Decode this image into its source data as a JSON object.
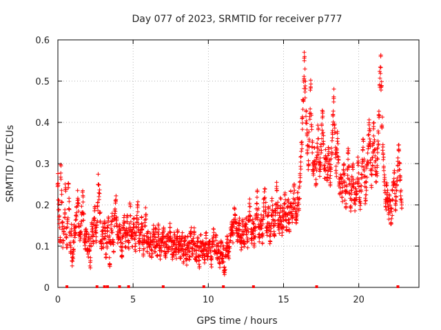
{
  "chart_data": {
    "type": "scatter",
    "title": "Day 077 of 2023, SRMTID for receiver p777",
    "xlabel": "GPS time / hours",
    "ylabel": "SRMTID / TECUs",
    "xlim": [
      0,
      24
    ],
    "ylim": [
      0,
      0.6
    ],
    "grid": true,
    "grid_style": "dotted",
    "marker": "+",
    "color": "#ff0000",
    "x_ticks": [
      0,
      5,
      10,
      15,
      20
    ],
    "x_tick_labels": [
      "0",
      "5",
      "10",
      "15",
      "20"
    ],
    "y_ticks": [
      0,
      0.1,
      0.2,
      0.3,
      0.4,
      0.5,
      0.6
    ],
    "y_tick_labels": [
      "0",
      "0.1",
      "0.2",
      "0.3",
      "0.4",
      "0.5",
      "0.6"
    ],
    "series": [
      {
        "name": "SRMTID",
        "points_per_cluster": 5,
        "cluster_spread": 0.012,
        "x_step": 0.05,
        "x": [
          0.0,
          0.05,
          0.1,
          0.15,
          0.2,
          0.25,
          0.3,
          0.35,
          0.4,
          0.45,
          0.5,
          0.55,
          0.6,
          0.65,
          0.7,
          0.75,
          0.8,
          0.85,
          0.9,
          0.95,
          1.0,
          1.05,
          1.1,
          1.15,
          1.2,
          1.25,
          1.3,
          1.35,
          1.4,
          1.45,
          1.5,
          1.55,
          1.6,
          1.65,
          1.7,
          1.75,
          1.8,
          1.85,
          1.9,
          1.95,
          2.0,
          2.05,
          2.1,
          2.15,
          2.2,
          2.25,
          2.3,
          2.35,
          2.4,
          2.45,
          2.5,
          2.55,
          2.6,
          2.65,
          2.7,
          2.75,
          2.8,
          2.85,
          2.9,
          2.95,
          3.0,
          3.05,
          3.1,
          3.15,
          3.2,
          3.25,
          3.3,
          3.35,
          3.4,
          3.45,
          3.5,
          3.55,
          3.6,
          3.65,
          3.7,
          3.75,
          3.8,
          3.85,
          3.9,
          3.95,
          4.0,
          4.05,
          4.1,
          4.15,
          4.2,
          4.25,
          4.3,
          4.35,
          4.4,
          4.45,
          4.5,
          4.55,
          4.6,
          4.65,
          4.7,
          4.75,
          4.8,
          4.85,
          4.9,
          4.95,
          5.0,
          5.05,
          5.1,
          5.15,
          5.2,
          5.25,
          5.3,
          5.35,
          5.4,
          5.45,
          5.5,
          5.55,
          5.6,
          5.65,
          5.7,
          5.75,
          5.8,
          5.85,
          5.9,
          5.95,
          6.0,
          6.05,
          6.1,
          6.15,
          6.2,
          6.25,
          6.3,
          6.35,
          6.4,
          6.45,
          6.5,
          6.55,
          6.6,
          6.65,
          6.7,
          6.75,
          6.8,
          6.85,
          6.9,
          6.95,
          7.0,
          7.05,
          7.1,
          7.15,
          7.2,
          7.25,
          7.3,
          7.35,
          7.4,
          7.45,
          7.5,
          7.55,
          7.6,
          7.65,
          7.7,
          7.75,
          7.8,
          7.85,
          7.9,
          7.95,
          8.0,
          8.05,
          8.1,
          8.15,
          8.2,
          8.25,
          8.3,
          8.35,
          8.4,
          8.45,
          8.5,
          8.55,
          8.6,
          8.65,
          8.7,
          8.75,
          8.8,
          8.85,
          8.9,
          8.95,
          9.0,
          9.05,
          9.1,
          9.15,
          9.2,
          9.25,
          9.3,
          9.35,
          9.4,
          9.45,
          9.5,
          9.55,
          9.6,
          9.65,
          9.7,
          9.75,
          9.8,
          9.85,
          9.9,
          9.95,
          10.0,
          10.05,
          10.1,
          10.15,
          10.2,
          10.25,
          10.3,
          10.35,
          10.4,
          10.45,
          10.5,
          10.55,
          10.6,
          10.65,
          10.7,
          10.75,
          10.8,
          10.85,
          10.9,
          10.95,
          11.0,
          11.05,
          11.1,
          11.15,
          11.2,
          11.25,
          11.3,
          11.35,
          11.4,
          11.45,
          11.5,
          11.55,
          11.6,
          11.65,
          11.7,
          11.75,
          11.8,
          11.85,
          11.9,
          11.95,
          12.0,
          12.05,
          12.1,
          12.15,
          12.2,
          12.25,
          12.3,
          12.35,
          12.4,
          12.45,
          12.5,
          12.55,
          12.6,
          12.65,
          12.7,
          12.75,
          12.8,
          12.85,
          12.9,
          12.95,
          13.0,
          13.05,
          13.1,
          13.15,
          13.2,
          13.25,
          13.3,
          13.35,
          13.4,
          13.45,
          13.5,
          13.55,
          13.6,
          13.65,
          13.7,
          13.75,
          13.8,
          13.85,
          13.9,
          13.95,
          14.0,
          14.05,
          14.1,
          14.15,
          14.2,
          14.25,
          14.3,
          14.35,
          14.4,
          14.45,
          14.5,
          14.55,
          14.6,
          14.65,
          14.7,
          14.75,
          14.8,
          14.85,
          14.9,
          14.95,
          15.0,
          15.05,
          15.1,
          15.15,
          15.2,
          15.25,
          15.3,
          15.35,
          15.4,
          15.45,
          15.5,
          15.55,
          15.6,
          15.65,
          15.7,
          15.75,
          15.8,
          15.85,
          15.9,
          15.95,
          16.0,
          16.05,
          16.1,
          16.15,
          16.2,
          16.25,
          16.3,
          16.35,
          16.4,
          16.45,
          16.5,
          16.55,
          16.6,
          16.65,
          16.7,
          16.75,
          16.8,
          16.85,
          16.9,
          16.95,
          17.0,
          17.05,
          17.1,
          17.15,
          17.2,
          17.25,
          17.3,
          17.35,
          17.4,
          17.45,
          17.5,
          17.55,
          17.6,
          17.65,
          17.7,
          17.75,
          17.8,
          17.85,
          17.9,
          17.95,
          18.0,
          18.05,
          18.1,
          18.15,
          18.2,
          18.25,
          18.3,
          18.35,
          18.4,
          18.45,
          18.5,
          18.55,
          18.6,
          18.65,
          18.7,
          18.75,
          18.8,
          18.85,
          18.9,
          18.95,
          19.0,
          19.05,
          19.1,
          19.15,
          19.2,
          19.25,
          19.3,
          19.35,
          19.4,
          19.45,
          19.5,
          19.55,
          19.6,
          19.65,
          19.7,
          19.75,
          19.8,
          19.85,
          19.9,
          19.95,
          20.0,
          20.05,
          20.1,
          20.15,
          20.2,
          20.25,
          20.3,
          20.35,
          20.4,
          20.45,
          20.5,
          20.55,
          20.6,
          20.65,
          20.7,
          20.75,
          20.8,
          20.85,
          20.9,
          20.95,
          21.0,
          21.05,
          21.1,
          21.15,
          21.2,
          21.25,
          21.3,
          21.35,
          21.4,
          21.45,
          21.5,
          21.55,
          21.6,
          21.65,
          21.7,
          21.75,
          21.8,
          21.85,
          21.9,
          21.95,
          22.0,
          22.05,
          22.1,
          22.15,
          22.2,
          22.25,
          22.3,
          22.35,
          22.4,
          22.45,
          22.5,
          22.55,
          22.6,
          22.65,
          22.7,
          22.75,
          22.8,
          22.85
        ],
        "y": [
          0.26,
          0.2,
          0.16,
          0.12,
          0.28,
          0.22,
          0.15,
          0.1,
          0.14,
          0.18,
          0.24,
          0.13,
          0.11,
          0.16,
          0.25,
          0.2,
          0.12,
          0.09,
          0.14,
          0.06,
          0.08,
          0.1,
          0.14,
          0.12,
          0.16,
          0.18,
          0.22,
          0.2,
          0.14,
          0.12,
          0.13,
          0.15,
          0.19,
          0.22,
          0.17,
          0.12,
          0.1,
          0.13,
          0.14,
          0.1,
          0.08,
          0.12,
          0.1,
          0.06,
          0.11,
          0.15,
          0.13,
          0.12,
          0.16,
          0.18,
          0.14,
          0.12,
          0.16,
          0.2,
          0.26,
          0.22,
          0.17,
          0.12,
          0.1,
          0.13,
          0.14,
          0.11,
          0.16,
          0.13,
          0.08,
          0.11,
          0.14,
          0.16,
          0.12,
          0.06,
          0.11,
          0.14,
          0.17,
          0.12,
          0.1,
          0.16,
          0.18,
          0.22,
          0.17,
          0.14,
          0.12,
          0.13,
          0.14,
          0.13,
          0.1,
          0.08,
          0.11,
          0.14,
          0.17,
          0.13,
          0.11,
          0.14,
          0.16,
          0.12,
          0.1,
          0.14,
          0.19,
          0.15,
          0.13,
          0.11,
          0.14,
          0.16,
          0.12,
          0.1,
          0.14,
          0.17,
          0.2,
          0.15,
          0.12,
          0.1,
          0.13,
          0.16,
          0.14,
          0.11,
          0.09,
          0.12,
          0.15,
          0.18,
          0.12,
          0.1,
          0.13,
          0.11,
          0.09,
          0.12,
          0.1,
          0.08,
          0.11,
          0.14,
          0.12,
          0.1,
          0.13,
          0.11,
          0.09,
          0.12,
          0.14,
          0.1,
          0.08,
          0.11,
          0.1,
          0.12,
          0.11,
          0.13,
          0.1,
          0.08,
          0.11,
          0.1,
          0.12,
          0.09,
          0.11,
          0.14,
          0.12,
          0.1,
          0.08,
          0.11,
          0.09,
          0.12,
          0.1,
          0.08,
          0.11,
          0.13,
          0.1,
          0.09,
          0.11,
          0.08,
          0.1,
          0.12,
          0.09,
          0.07,
          0.1,
          0.12,
          0.08,
          0.06,
          0.09,
          0.11,
          0.1,
          0.08,
          0.12,
          0.14,
          0.1,
          0.09,
          0.11,
          0.13,
          0.1,
          0.08,
          0.07,
          0.09,
          0.11,
          0.08,
          0.06,
          0.09,
          0.12,
          0.1,
          0.08,
          0.11,
          0.09,
          0.07,
          0.1,
          0.12,
          0.08,
          0.07,
          0.09,
          0.11,
          0.1,
          0.08,
          0.06,
          0.09,
          0.11,
          0.13,
          0.1,
          0.08,
          0.12,
          0.09,
          0.07,
          0.1,
          0.08,
          0.06,
          0.09,
          0.11,
          0.08,
          0.07,
          0.09,
          0.05,
          0.04,
          0.08,
          0.1,
          0.12,
          0.09,
          0.08,
          0.1,
          0.12,
          0.13,
          0.15,
          0.14,
          0.12,
          0.16,
          0.18,
          0.17,
          0.15,
          0.13,
          0.12,
          0.14,
          0.16,
          0.13,
          0.12,
          0.1,
          0.13,
          0.15,
          0.12,
          0.1,
          0.14,
          0.16,
          0.13,
          0.11,
          0.15,
          0.17,
          0.2,
          0.16,
          0.13,
          0.12,
          0.15,
          0.14,
          0.11,
          0.13,
          0.16,
          0.19,
          0.22,
          0.18,
          0.14,
          0.12,
          0.15,
          0.17,
          0.14,
          0.12,
          0.16,
          0.2,
          0.23,
          0.19,
          0.15,
          0.13,
          0.16,
          0.18,
          0.15,
          0.12,
          0.14,
          0.17,
          0.2,
          0.18,
          0.15,
          0.13,
          0.17,
          0.2,
          0.24,
          0.19,
          0.15,
          0.14,
          0.17,
          0.2,
          0.16,
          0.14,
          0.18,
          0.16,
          0.19,
          0.22,
          0.17,
          0.15,
          0.18,
          0.21,
          0.17,
          0.15,
          0.19,
          0.22,
          0.18,
          0.16,
          0.2,
          0.24,
          0.2,
          0.17,
          0.16,
          0.19,
          0.22,
          0.2,
          0.23,
          0.26,
          0.3,
          0.35,
          0.4,
          0.45,
          0.5,
          0.55,
          0.48,
          0.42,
          0.38,
          0.34,
          0.3,
          0.36,
          0.42,
          0.48,
          0.4,
          0.34,
          0.3,
          0.28,
          0.32,
          0.3,
          0.26,
          0.3,
          0.34,
          0.38,
          0.32,
          0.28,
          0.3,
          0.34,
          0.38,
          0.42,
          0.36,
          0.3,
          0.28,
          0.32,
          0.3,
          0.26,
          0.3,
          0.34,
          0.3,
          0.26,
          0.3,
          0.34,
          0.38,
          0.42,
          0.46,
          0.38,
          0.32,
          0.28,
          0.32,
          0.36,
          0.3,
          0.26,
          0.24,
          0.28,
          0.26,
          0.22,
          0.26,
          0.3,
          0.26,
          0.22,
          0.2,
          0.24,
          0.28,
          0.32,
          0.28,
          0.24,
          0.2,
          0.22,
          0.26,
          0.3,
          0.26,
          0.22,
          0.2,
          0.24,
          0.22,
          0.26,
          0.3,
          0.26,
          0.22,
          0.2,
          0.24,
          0.28,
          0.32,
          0.36,
          0.3,
          0.26,
          0.22,
          0.24,
          0.28,
          0.32,
          0.36,
          0.4,
          0.36,
          0.3,
          0.26,
          0.3,
          0.34,
          0.38,
          0.34,
          0.3,
          0.26,
          0.28,
          0.32,
          0.36,
          0.42,
          0.5,
          0.54,
          0.48,
          0.4,
          0.34,
          0.3,
          0.26,
          0.22,
          0.2,
          0.24,
          0.22,
          0.2,
          0.18,
          0.22,
          0.2,
          0.16,
          0.18,
          0.22,
          0.26,
          0.28,
          0.24,
          0.2,
          0.22,
          0.26,
          0.3,
          0.34,
          0.3,
          0.26,
          0.22,
          0.2
        ]
      }
    ],
    "observation_markers_x": [
      0.6,
      2.6,
      3.1,
      3.3,
      4.1,
      4.7,
      7.0,
      9.7,
      11.0,
      13.0,
      17.2,
      22.6
    ]
  }
}
